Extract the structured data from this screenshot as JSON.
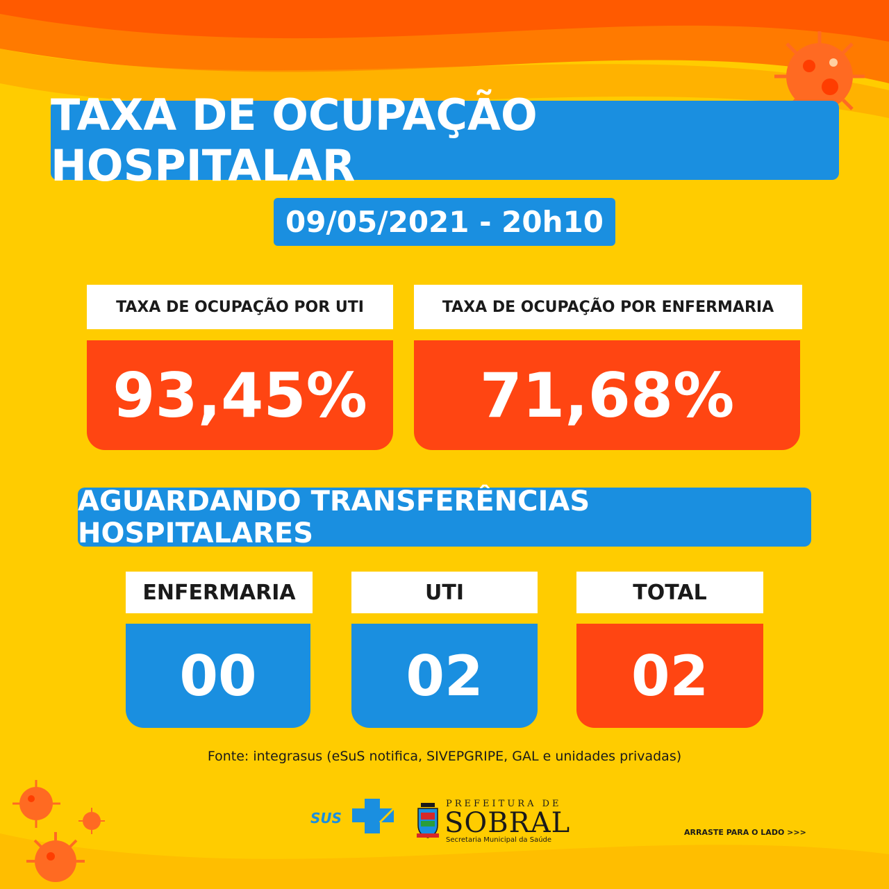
{
  "title": "TAXA DE OCUPAÇÃO HOSPITALAR",
  "date": "09/05/2021 - 20h10",
  "occupancy": [
    {
      "label": "TAXA DE OCUPAÇÃO POR UTI",
      "value": "93,45%"
    },
    {
      "label": "TAXA DE OCUPAÇÃO POR ENFERMARIA",
      "value": "71,68%"
    }
  ],
  "transfers": {
    "heading": "AGUARDANDO TRANSFERÊNCIAS HOSPITALARES",
    "items": [
      {
        "label": "ENFERMARIA",
        "value": "00"
      },
      {
        "label": "UTI",
        "value": "02"
      },
      {
        "label": "TOTAL",
        "value": "02"
      }
    ]
  },
  "source": "Fonte: integrasus (eSuS notifica, SIVEPGRIPE, GAL e unidades privadas)",
  "logos": {
    "sus": "SUS",
    "prefeitura": "PREFEITURA DE",
    "city": "SOBRAL",
    "secretaria": "Secretaria Municipal da Saúde"
  },
  "swipe_hint": "ARRASTE PARA O LADO >>>",
  "colors": {
    "blue": "#1a8fe0",
    "orange": "#ff4512",
    "yellow": "#ffcc00"
  }
}
